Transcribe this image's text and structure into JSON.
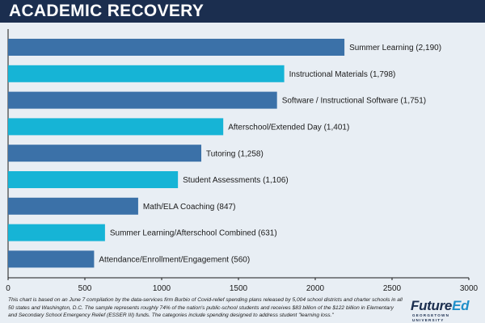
{
  "header": {
    "title": "ACADEMIC RECOVERY"
  },
  "colors": {
    "background": "#e8eef4",
    "header": "#1b2e4f",
    "bar_dark": "#3b71a8",
    "bar_light": "#16b4d6"
  },
  "chart_data": {
    "type": "bar",
    "orientation": "horizontal",
    "title": "ACADEMIC RECOVERY",
    "categories": [
      "Summer Learning",
      "Instructional Materials",
      "Software / Instructional Software",
      "Afterschool/Extended Day",
      "Tutoring",
      "Student Assessments",
      "Math/ELA Coaching",
      "Summer Learning/Afterschool Combined",
      "Attendance/Enrollment/Engagement"
    ],
    "values": [
      2190,
      1798,
      1751,
      1401,
      1258,
      1106,
      847,
      631,
      560
    ],
    "bar_labels": [
      "Summer Learning (2,190)",
      "Instructional Materials (1,798)",
      "Software / Instructional Software (1,751)",
      "Afterschool/Extended Day (1,401)",
      "Tutoring (1,258)",
      "Student Assessments (1,106)",
      "Math/ELA Coaching (847)",
      "Summer Learning/Afterschool Combined (631)",
      "Attendance/Enrollment/Engagement (560)"
    ],
    "xlim": [
      0,
      3000
    ],
    "xticks": [
      0,
      500,
      1000,
      1500,
      2000,
      2500,
      3000
    ],
    "xtick_labels": [
      "0",
      "500",
      "1000",
      "1500",
      "2000",
      "2500",
      "3000"
    ],
    "grid": false,
    "legend": "none"
  },
  "footnote": "This chart is based on an June 7 compilation by the data-services firm Burbio of Covid-relief spending plans released by 5,004 school districts and charter schools in all 50 states and Washington, D.C. The sample represents roughly 74% of the nation's public-school students and receives $83 billion of the $122 billion in Elementary and Secondary School Emergency Relief (ESSER III) funds. The categories include spending designed to address student \"learning loss.\"",
  "logo": {
    "main_a": "Future",
    "main_b": "Ed",
    "sub": "GEORGETOWN UNIVERSITY"
  }
}
